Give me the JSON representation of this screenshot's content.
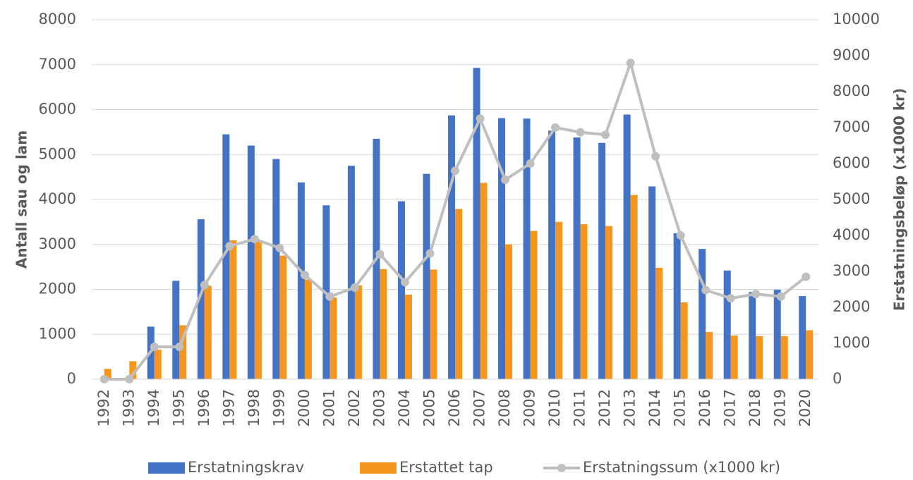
{
  "chart_data": {
    "type": "bar-line",
    "categories": [
      "1992",
      "1993",
      "1994",
      "1995",
      "1996",
      "1997",
      "1998",
      "1999",
      "2000",
      "2001",
      "2002",
      "2003",
      "2004",
      "2005",
      "2006",
      "2007",
      "2008",
      "2009",
      "2010",
      "2011",
      "2012",
      "2013",
      "2014",
      "2015",
      "2016",
      "2017",
      "2018",
      "2019",
      "2020"
    ],
    "y_label": "Antall sau og lam",
    "y2_label": "Erstatningsbeløp (x1000 kr)",
    "ylim": [
      0,
      8000
    ],
    "yticks": [
      0,
      1000,
      2000,
      3000,
      4000,
      5000,
      6000,
      7000,
      8000
    ],
    "y2lim": [
      0,
      10000
    ],
    "y2ticks": [
      0,
      1000,
      2000,
      3000,
      4000,
      5000,
      6000,
      7000,
      8000,
      9000,
      10000
    ],
    "grid": true,
    "legend": "bottom",
    "series": [
      {
        "name": "Erstatningskrav",
        "type": "bar",
        "color": "#4472c4",
        "values": [
          0,
          0,
          1170,
          2190,
          3560,
          5450,
          5200,
          4900,
          4380,
          3870,
          4750,
          5350,
          3960,
          4570,
          5870,
          6930,
          5810,
          5800,
          5530,
          5380,
          5260,
          5890,
          4290,
          3250,
          2900,
          2420,
          1940,
          1990,
          1850
        ]
      },
      {
        "name": "Erstattet tap",
        "type": "bar",
        "color": "#f7961e",
        "values": [
          230,
          400,
          660,
          1200,
          2080,
          3090,
          3060,
          2750,
          2220,
          1820,
          2090,
          2450,
          1880,
          2440,
          3790,
          4370,
          3000,
          3300,
          3500,
          3450,
          3410,
          4100,
          2480,
          1710,
          1050,
          970,
          960,
          960,
          1090
        ]
      },
      {
        "name": "Erstatningssum (x1000 kr)",
        "type": "line",
        "axis": "y2",
        "color": "#bfbfbf",
        "values": [
          0,
          0,
          900,
          900,
          2620,
          3700,
          3900,
          3650,
          2900,
          2300,
          2550,
          3480,
          2700,
          3500,
          5800,
          7250,
          5550,
          6000,
          7000,
          6870,
          6800,
          8800,
          6200,
          4000,
          2480,
          2250,
          2370,
          2300,
          2850
        ]
      }
    ]
  }
}
